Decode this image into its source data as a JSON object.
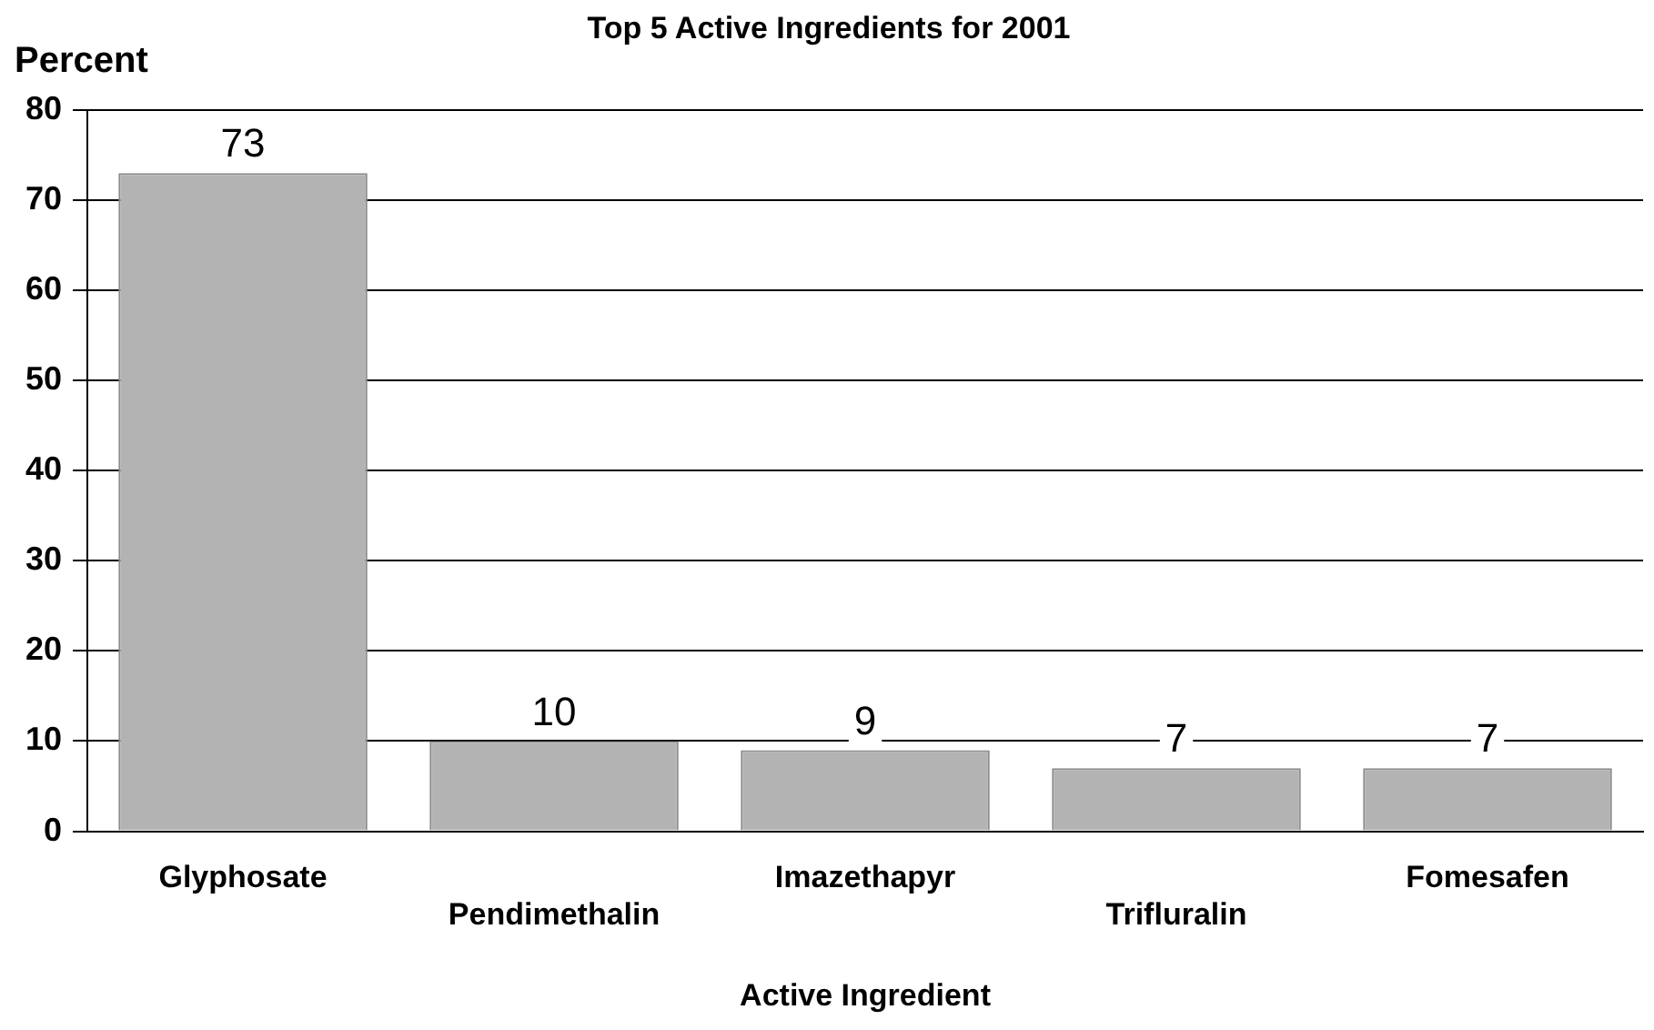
{
  "chart_data": {
    "type": "bar",
    "title": "Top 5 Active Ingredients for 2001",
    "xlabel": "Active Ingredient",
    "ylabel": "Percent",
    "categories": [
      "Glyphosate",
      "Pendimethalin",
      "Imazethapyr",
      "Trifluralin",
      "Fomesafen"
    ],
    "values": [
      73,
      10,
      9,
      7,
      7
    ],
    "color": "#b3b3b3",
    "data_labels": true,
    "ylim": [
      0,
      80
    ],
    "yticks": [
      0,
      10,
      20,
      30,
      40,
      50,
      60,
      70,
      80
    ],
    "grid": "y",
    "legend": false
  }
}
